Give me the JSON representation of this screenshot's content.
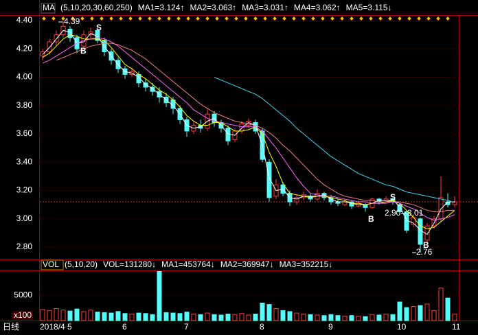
{
  "chart_data": [
    {
      "type": "candlestick",
      "indicator": "MA",
      "params": "(5,10,20,30,60,250)",
      "up_color": "#ff3c3c",
      "down_color": "#54fcfc",
      "ylim": [
        2.713,
        4.439
      ],
      "yticks": [
        {
          "value": 4.4,
          "label": "4.40"
        },
        {
          "value": 4.2,
          "label": "4.20"
        },
        {
          "value": 4.0,
          "label": "4.00"
        },
        {
          "value": 3.8,
          "label": "3.80"
        },
        {
          "value": 3.6,
          "label": "3.60"
        },
        {
          "value": 3.4,
          "label": "3.40"
        },
        {
          "value": 3.2,
          "label": "3.20"
        },
        {
          "value": 3.0,
          "label": "3.00"
        },
        {
          "value": 2.8,
          "label": "2.80"
        }
      ],
      "grid": true,
      "open": [
        4.15,
        4.18,
        4.25,
        4.3,
        4.34,
        4.28,
        4.22,
        4.3,
        4.33,
        4.26,
        4.18,
        4.12,
        4.06,
        4.02,
        4.02,
        3.96,
        3.93,
        3.9,
        3.86,
        3.84,
        3.78,
        3.7,
        3.62,
        3.66,
        3.64,
        3.74,
        3.68,
        3.64,
        3.56,
        3.62,
        3.66,
        3.68,
        3.62,
        3.4,
        3.16,
        3.24,
        3.18,
        3.12,
        3.15,
        3.16,
        3.14,
        3.18,
        3.15,
        3.12,
        3.1,
        3.12,
        3.09,
        3.1,
        3.08,
        3.14,
        3.13,
        3.14,
        3.1,
        3.05,
        2.96,
        3.0,
        2.85,
        2.95,
        3.0,
        3.12,
        3.1
      ],
      "high": [
        4.2,
        4.27,
        4.33,
        4.39,
        4.36,
        4.3,
        4.33,
        4.35,
        4.35,
        4.28,
        4.2,
        4.14,
        4.08,
        4.07,
        4.04,
        3.99,
        3.96,
        3.93,
        3.89,
        3.86,
        3.8,
        3.72,
        3.69,
        3.7,
        3.78,
        3.76,
        3.7,
        3.66,
        3.64,
        3.69,
        3.71,
        3.7,
        3.64,
        3.42,
        3.28,
        3.26,
        3.2,
        3.17,
        3.19,
        3.18,
        3.21,
        3.19,
        3.17,
        3.14,
        3.14,
        3.13,
        3.13,
        3.11,
        3.15,
        3.15,
        3.16,
        3.15,
        3.11,
        3.06,
        3.03,
        3.01,
        2.97,
        3.02,
        3.3,
        3.18,
        3.16
      ],
      "low": [
        4.12,
        4.16,
        4.22,
        4.28,
        4.25,
        4.17,
        4.2,
        4.27,
        4.24,
        4.15,
        4.09,
        4.03,
        3.99,
        4.0,
        3.93,
        3.9,
        3.87,
        3.82,
        3.79,
        3.74,
        3.67,
        3.58,
        3.6,
        3.61,
        3.62,
        3.65,
        3.61,
        3.52,
        3.54,
        3.6,
        3.64,
        3.6,
        3.4,
        3.12,
        3.14,
        3.16,
        3.09,
        3.1,
        3.13,
        3.12,
        3.13,
        3.13,
        3.1,
        3.09,
        3.09,
        3.07,
        3.08,
        3.05,
        3.07,
        3.1,
        3.11,
        3.1,
        3.03,
        2.9,
        2.94,
        2.76,
        2.83,
        2.93,
        2.98,
        3.08,
        3.08
      ],
      "close": [
        4.18,
        4.25,
        4.3,
        4.36,
        4.28,
        4.2,
        4.3,
        4.32,
        4.26,
        4.18,
        4.12,
        4.06,
        4.02,
        4.04,
        3.96,
        3.93,
        3.9,
        3.86,
        3.82,
        3.78,
        3.7,
        3.62,
        3.66,
        3.64,
        3.74,
        3.68,
        3.64,
        3.55,
        3.62,
        3.67,
        3.69,
        3.62,
        3.42,
        3.15,
        3.24,
        3.18,
        3.12,
        3.15,
        3.17,
        3.14,
        3.18,
        3.15,
        3.12,
        3.11,
        3.12,
        3.09,
        3.11,
        3.08,
        3.14,
        3.12,
        3.14,
        3.12,
        3.05,
        2.92,
        3.01,
        2.82,
        2.95,
        3.0,
        3.15,
        3.1,
        3.12
      ],
      "series": [
        {
          "name": "MA1=3.124↑",
          "color": "#ffffff",
          "values": [
            4.16,
            4.21,
            4.27,
            4.33,
            4.32,
            4.24,
            4.25,
            4.31,
            4.29,
            4.22,
            4.15,
            4.09,
            4.04,
            4.03,
            4.0,
            3.95,
            3.92,
            3.88,
            3.84,
            3.8,
            3.74,
            3.66,
            3.64,
            3.65,
            3.69,
            3.71,
            3.66,
            3.6,
            3.59,
            3.64,
            3.68,
            3.66,
            3.52,
            3.29,
            3.2,
            3.21,
            3.15,
            3.14,
            3.16,
            3.16,
            3.16,
            3.17,
            3.14,
            3.12,
            3.12,
            3.11,
            3.1,
            3.1,
            3.11,
            3.13,
            3.13,
            3.13,
            3.09,
            2.99,
            2.97,
            2.92,
            2.89,
            2.97,
            3.07,
            3.12,
            3.12
          ]
        },
        {
          "name": "MA2=3.063↑",
          "color": "#ffff00",
          "values": [
            4.14,
            4.17,
            4.22,
            4.27,
            4.3,
            4.29,
            4.27,
            4.27,
            4.27,
            4.26,
            4.21,
            4.15,
            4.09,
            4.06,
            4.02,
            3.99,
            3.95,
            3.91,
            3.88,
            3.84,
            3.79,
            3.73,
            3.69,
            3.66,
            3.66,
            3.68,
            3.68,
            3.65,
            3.62,
            3.62,
            3.63,
            3.65,
            3.6,
            3.47,
            3.37,
            3.25,
            3.18,
            3.17,
            3.16,
            3.15,
            3.16,
            3.16,
            3.15,
            3.14,
            3.13,
            3.11,
            3.11,
            3.1,
            3.11,
            3.11,
            3.12,
            3.13,
            3.11,
            3.06,
            3.01,
            2.95,
            2.93,
            2.94,
            2.98,
            3.02,
            3.06
          ]
        },
        {
          "name": "MA3=3.031↑",
          "color": "#ff66ff",
          "values": [
            4.1,
            4.12,
            4.15,
            4.18,
            4.21,
            4.24,
            4.26,
            4.27,
            4.28,
            4.27,
            4.25,
            4.22,
            4.18,
            4.14,
            4.1,
            4.06,
            4.02,
            3.98,
            3.94,
            3.9,
            3.86,
            3.82,
            3.77,
            3.74,
            3.71,
            3.69,
            3.68,
            3.67,
            3.66,
            3.65,
            3.65,
            3.65,
            3.62,
            3.56,
            3.5,
            3.43,
            3.36,
            3.29,
            3.23,
            3.18,
            3.17,
            3.16,
            3.16,
            3.15,
            3.14,
            3.13,
            3.12,
            3.12,
            3.11,
            3.11,
            3.11,
            3.12,
            3.11,
            3.09,
            3.07,
            3.04,
            3.01,
            2.99,
            3.0,
            3.01,
            3.03
          ]
        },
        {
          "name": "MA4=3.062↑",
          "color": "#f08080",
          "values": [
            null,
            null,
            4.12,
            4.14,
            4.16,
            4.18,
            4.2,
            4.22,
            4.23,
            4.24,
            4.24,
            4.23,
            4.21,
            4.19,
            4.16,
            4.13,
            4.09,
            4.05,
            4.01,
            3.97,
            3.93,
            3.89,
            3.85,
            3.81,
            3.78,
            3.75,
            3.73,
            3.71,
            3.69,
            3.68,
            3.67,
            3.66,
            3.64,
            3.61,
            3.57,
            3.52,
            3.48,
            3.43,
            3.38,
            3.33,
            3.28,
            3.24,
            3.21,
            3.18,
            3.16,
            3.15,
            3.14,
            3.13,
            3.13,
            3.12,
            3.12,
            3.12,
            3.12,
            3.11,
            3.1,
            3.08,
            3.06,
            3.05,
            3.05,
            3.06,
            3.06
          ]
        },
        {
          "name": "MA5=3.115↓",
          "color": "#40d8f0",
          "values": [
            null,
            null,
            null,
            null,
            null,
            null,
            null,
            null,
            null,
            null,
            null,
            null,
            null,
            null,
            null,
            null,
            null,
            null,
            null,
            null,
            null,
            null,
            null,
            null,
            null,
            4.0,
            3.98,
            3.96,
            3.94,
            3.92,
            3.9,
            3.88,
            3.85,
            3.81,
            3.77,
            3.73,
            3.69,
            3.64,
            3.6,
            3.56,
            3.52,
            3.48,
            3.44,
            3.41,
            3.38,
            3.35,
            3.32,
            3.3,
            3.28,
            3.26,
            3.24,
            3.23,
            3.21,
            3.19,
            3.18,
            3.17,
            3.16,
            3.15,
            3.14,
            3.13,
            3.115
          ]
        }
      ],
      "annotations": [
        "4.39",
        "2.76",
        "2.90",
        "3.01",
        "B",
        "S",
        "B",
        "S",
        "B"
      ]
    },
    {
      "type": "bar",
      "indicator": "VOL",
      "params": "(5,10,20)",
      "unit": "x100",
      "legend": [
        {
          "text": "VOL=131280↓",
          "color": "#ffffff"
        },
        {
          "text": "MA1=453764↓",
          "color": "#ffffff"
        },
        {
          "text": "MA2=369947↓",
          "color": "#ffff00"
        },
        {
          "text": "MA3=352215↓",
          "color": "#ff66ff"
        }
      ],
      "ylim": [
        0,
        9860
      ],
      "yticks": [
        5000
      ],
      "categories": [
        "2018/4",
        null,
        null,
        null,
        "5",
        null,
        null,
        null,
        null,
        null,
        null,
        null,
        "6",
        null,
        null,
        null,
        null,
        null,
        null,
        null,
        null,
        "7",
        null,
        null,
        null,
        null,
        null,
        null,
        null,
        null,
        null,
        null,
        "8",
        null,
        null,
        null,
        null,
        null,
        null,
        null,
        null,
        null,
        "9",
        null,
        null,
        null,
        null,
        null,
        null,
        null,
        null,
        null,
        "10",
        null,
        null,
        null,
        null,
        null,
        null,
        null,
        "11"
      ],
      "values": [
        2200,
        2000,
        2400,
        2100,
        1900,
        2300,
        1800,
        2100,
        1700,
        1600,
        1500,
        1800,
        1400,
        1300,
        1500,
        1400,
        1200,
        9800,
        1600,
        1500,
        1400,
        1700,
        1300,
        1200,
        1500,
        1200,
        1100,
        1300,
        1200,
        1400,
        1100,
        1300,
        3500,
        3200,
        2400,
        2000,
        1800,
        1500,
        1300,
        1200,
        1100,
        1000,
        1200,
        1000,
        900,
        1000,
        900,
        800,
        1200,
        1100,
        1300,
        1200,
        3700,
        2600,
        2800,
        3000,
        3300,
        2000,
        6500,
        4500,
        1313
      ]
    },
    {
      "period": "日线"
    }
  ]
}
